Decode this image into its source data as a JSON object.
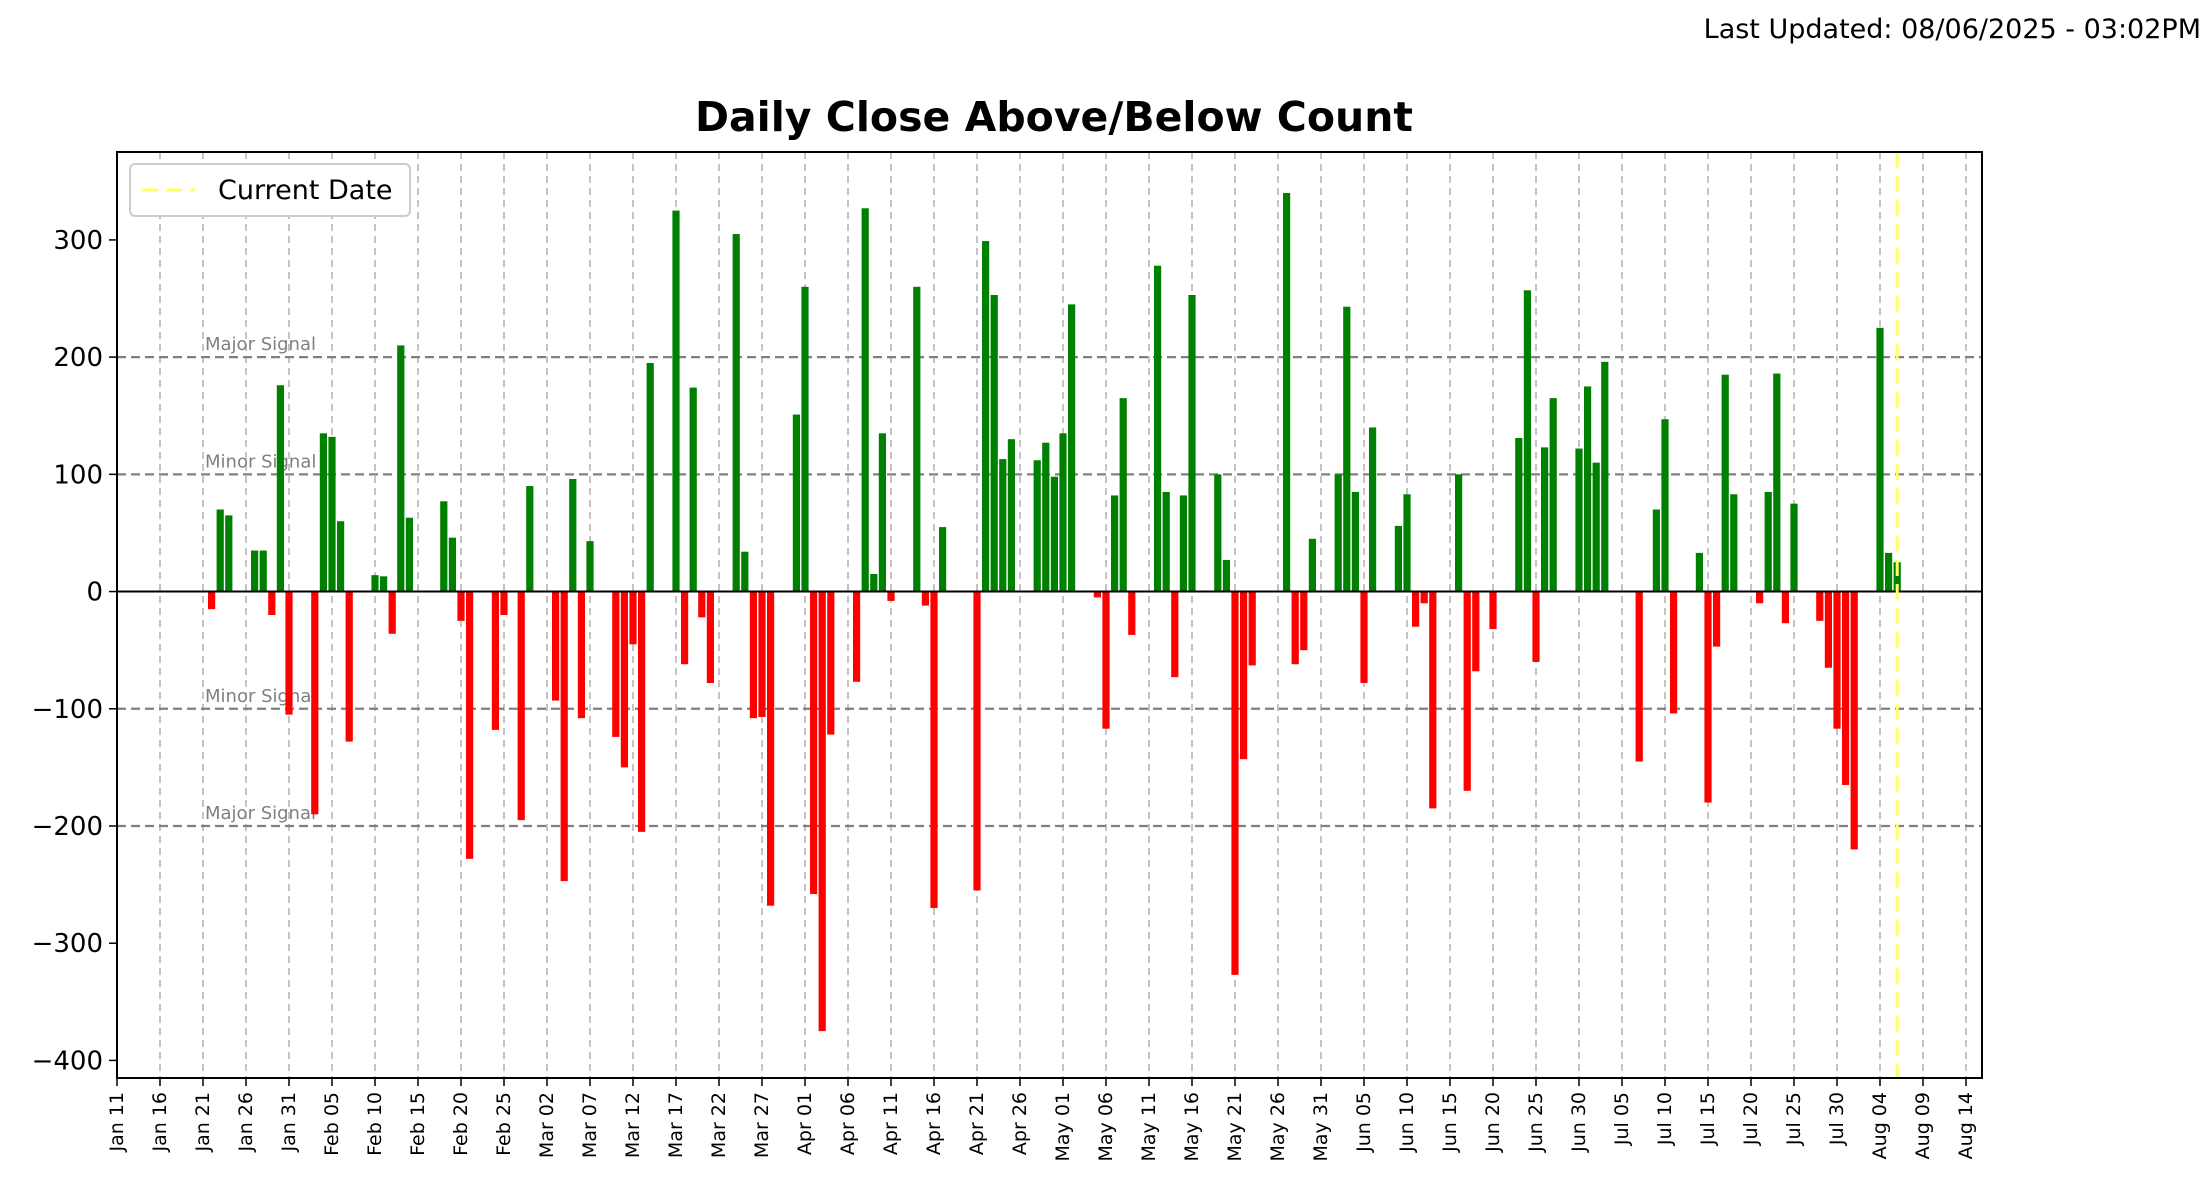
{
  "header": {
    "last_updated": "Last Updated: 08/06/2025 - 03:02PM"
  },
  "chart_data": {
    "type": "bar",
    "title": "Daily Close Above/Below Count",
    "xlabel": "",
    "ylabel": "",
    "ylim": [
      -415,
      375
    ],
    "yticks": [
      -400,
      -300,
      -200,
      -100,
      0,
      100,
      200,
      300
    ],
    "ytick_labels": [
      "−400",
      "−300",
      "−200",
      "−100",
      "0",
      "100",
      "200",
      "300"
    ],
    "x_start_date": "2025-01-11",
    "x_end_date": "2025-08-16",
    "xtick_labels": [
      "Jan 11",
      "Jan 16",
      "Jan 21",
      "Jan 26",
      "Jan 31",
      "Feb 05",
      "Feb 10",
      "Feb 15",
      "Feb 20",
      "Feb 25",
      "Mar 02",
      "Mar 07",
      "Mar 12",
      "Mar 17",
      "Mar 22",
      "Mar 27",
      "Apr 01",
      "Apr 06",
      "Apr 11",
      "Apr 16",
      "Apr 21",
      "Apr 26",
      "May 01",
      "May 06",
      "May 11",
      "May 16",
      "May 21",
      "May 26",
      "May 31",
      "Jun 05",
      "Jun 10",
      "Jun 15",
      "Jun 20",
      "Jun 25",
      "Jun 30",
      "Jul 05",
      "Jul 10",
      "Jul 15",
      "Jul 20",
      "Jul 25",
      "Jul 30",
      "Aug 04",
      "Aug 09",
      "Aug 14"
    ],
    "reference_lines": [
      {
        "label": "Major Signal",
        "value": 200
      },
      {
        "label": "Minor Signal",
        "value": 100
      },
      {
        "label": "Minor Signal",
        "value": -100
      },
      {
        "label": "Major Signal",
        "value": -200
      }
    ],
    "current_date": "2025-08-06",
    "legend": {
      "label": "Current Date",
      "position": "top-left"
    },
    "colors": {
      "positive": "#008000",
      "negative": "#ff0000",
      "current_date": "#ffff66",
      "reference": "#808080"
    },
    "grid": "vertical dashed",
    "bars": [
      [
        "2025-01-22",
        -15
      ],
      [
        "2025-01-23",
        70
      ],
      [
        "2025-01-24",
        65
      ],
      [
        "2025-01-27",
        35
      ],
      [
        "2025-01-28",
        35
      ],
      [
        "2025-01-29",
        -20
      ],
      [
        "2025-01-30",
        176
      ],
      [
        "2025-01-31",
        -105
      ],
      [
        "2025-02-03",
        -190
      ],
      [
        "2025-02-04",
        135
      ],
      [
        "2025-02-05",
        132
      ],
      [
        "2025-02-06",
        60
      ],
      [
        "2025-02-07",
        -128
      ],
      [
        "2025-02-10",
        14
      ],
      [
        "2025-02-11",
        13
      ],
      [
        "2025-02-12",
        -36
      ],
      [
        "2025-02-13",
        210
      ],
      [
        "2025-02-14",
        63
      ],
      [
        "2025-02-18",
        77
      ],
      [
        "2025-02-19",
        46
      ],
      [
        "2025-02-20",
        -25
      ],
      [
        "2025-02-21",
        -228
      ],
      [
        "2025-02-24",
        -118
      ],
      [
        "2025-02-25",
        -20
      ],
      [
        "2025-02-27",
        -195
      ],
      [
        "2025-02-28",
        90
      ],
      [
        "2025-03-03",
        -93
      ],
      [
        "2025-03-04",
        -247
      ],
      [
        "2025-03-05",
        96
      ],
      [
        "2025-03-06",
        -108
      ],
      [
        "2025-03-07",
        43
      ],
      [
        "2025-03-10",
        -124
      ],
      [
        "2025-03-11",
        -150
      ],
      [
        "2025-03-12",
        -45
      ],
      [
        "2025-03-13",
        -205
      ],
      [
        "2025-03-14",
        195
      ],
      [
        "2025-03-17",
        325
      ],
      [
        "2025-03-18",
        -62
      ],
      [
        "2025-03-19",
        174
      ],
      [
        "2025-03-20",
        -22
      ],
      [
        "2025-03-21",
        -78
      ],
      [
        "2025-03-24",
        305
      ],
      [
        "2025-03-25",
        34
      ],
      [
        "2025-03-26",
        -108
      ],
      [
        "2025-03-27",
        -107
      ],
      [
        "2025-03-28",
        -268
      ],
      [
        "2025-03-31",
        151
      ],
      [
        "2025-04-01",
        260
      ],
      [
        "2025-04-02",
        -258
      ],
      [
        "2025-04-03",
        -375
      ],
      [
        "2025-04-04",
        -122
      ],
      [
        "2025-04-07",
        -77
      ],
      [
        "2025-04-08",
        327
      ],
      [
        "2025-04-09",
        15
      ],
      [
        "2025-04-10",
        135
      ],
      [
        "2025-04-11",
        -8
      ],
      [
        "2025-04-14",
        260
      ],
      [
        "2025-04-15",
        -12
      ],
      [
        "2025-04-16",
        -270
      ],
      [
        "2025-04-17",
        55
      ],
      [
        "2025-04-21",
        -255
      ],
      [
        "2025-04-22",
        299
      ],
      [
        "2025-04-23",
        253
      ],
      [
        "2025-04-24",
        113
      ],
      [
        "2025-04-25",
        130
      ],
      [
        "2025-04-28",
        112
      ],
      [
        "2025-04-29",
        127
      ],
      [
        "2025-04-30",
        98
      ],
      [
        "2025-05-01",
        135
      ],
      [
        "2025-05-02",
        245
      ],
      [
        "2025-05-05",
        -5
      ],
      [
        "2025-05-06",
        -117
      ],
      [
        "2025-05-07",
        82
      ],
      [
        "2025-05-08",
        165
      ],
      [
        "2025-05-09",
        -37
      ],
      [
        "2025-05-12",
        278
      ],
      [
        "2025-05-13",
        85
      ],
      [
        "2025-05-14",
        -73
      ],
      [
        "2025-05-15",
        82
      ],
      [
        "2025-05-16",
        253
      ],
      [
        "2025-05-19",
        100
      ],
      [
        "2025-05-20",
        27
      ],
      [
        "2025-05-21",
        -327
      ],
      [
        "2025-05-22",
        -143
      ],
      [
        "2025-05-23",
        -63
      ],
      [
        "2025-05-27",
        340
      ],
      [
        "2025-05-28",
        -62
      ],
      [
        "2025-05-29",
        -50
      ],
      [
        "2025-05-30",
        45
      ],
      [
        "2025-06-02",
        100
      ],
      [
        "2025-06-03",
        243
      ],
      [
        "2025-06-04",
        85
      ],
      [
        "2025-06-05",
        -78
      ],
      [
        "2025-06-06",
        140
      ],
      [
        "2025-06-09",
        56
      ],
      [
        "2025-06-10",
        83
      ],
      [
        "2025-06-11",
        -30
      ],
      [
        "2025-06-12",
        -10
      ],
      [
        "2025-06-13",
        -185
      ],
      [
        "2025-06-16",
        100
      ],
      [
        "2025-06-17",
        -170
      ],
      [
        "2025-06-18",
        -68
      ],
      [
        "2025-06-20",
        -32
      ],
      [
        "2025-06-23",
        131
      ],
      [
        "2025-06-24",
        257
      ],
      [
        "2025-06-25",
        -60
      ],
      [
        "2025-06-26",
        123
      ],
      [
        "2025-06-27",
        165
      ],
      [
        "2025-06-30",
        122
      ],
      [
        "2025-07-01",
        175
      ],
      [
        "2025-07-02",
        110
      ],
      [
        "2025-07-03",
        196
      ],
      [
        "2025-07-07",
        -145
      ],
      [
        "2025-07-09",
        70
      ],
      [
        "2025-07-10",
        147
      ],
      [
        "2025-07-11",
        -104
      ],
      [
        "2025-07-14",
        33
      ],
      [
        "2025-07-15",
        -180
      ],
      [
        "2025-07-16",
        -47
      ],
      [
        "2025-07-17",
        185
      ],
      [
        "2025-07-18",
        83
      ],
      [
        "2025-07-21",
        -10
      ],
      [
        "2025-07-22",
        85
      ],
      [
        "2025-07-23",
        186
      ],
      [
        "2025-07-24",
        -27
      ],
      [
        "2025-07-25",
        75
      ],
      [
        "2025-07-28",
        -25
      ],
      [
        "2025-07-29",
        -65
      ],
      [
        "2025-07-30",
        -117
      ],
      [
        "2025-07-31",
        -165
      ],
      [
        "2025-08-01",
        -220
      ],
      [
        "2025-08-04",
        225
      ],
      [
        "2025-08-05",
        33
      ],
      [
        "2025-08-06",
        25
      ]
    ]
  }
}
